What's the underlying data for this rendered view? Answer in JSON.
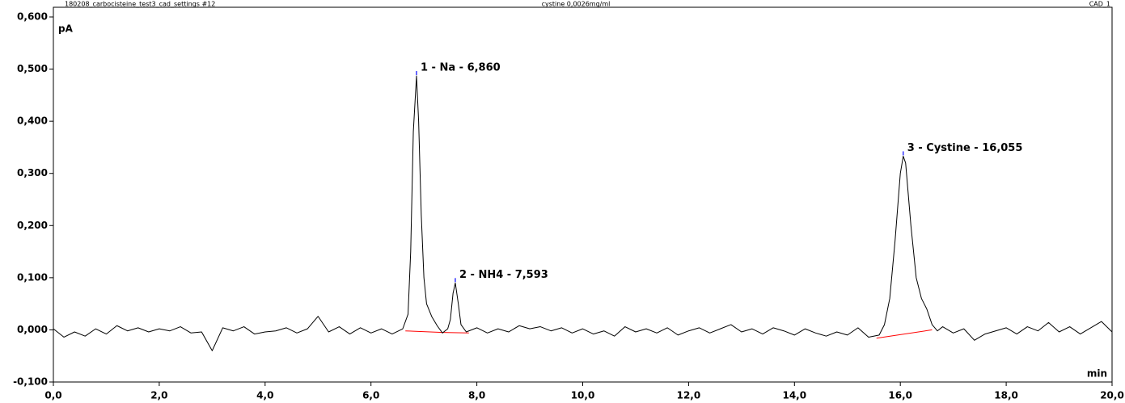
{
  "chart_data": {
    "type": "line",
    "title": "180208_carbocisteine_test3_cad_settings #12",
    "subtitle": "cystine 0,0026mg/ml",
    "channel": "CAD_1",
    "y_label": "pA",
    "x_label": "min",
    "xlim": [
      0,
      20
    ],
    "ylim": [
      -0.1,
      0.6
    ],
    "xticks": [
      {
        "value": 0,
        "label": "0,0"
      },
      {
        "value": 2,
        "label": "2,0"
      },
      {
        "value": 4,
        "label": "4,0"
      },
      {
        "value": 6,
        "label": "6,0"
      },
      {
        "value": 8,
        "label": "8,0"
      },
      {
        "value": 10,
        "label": "10,0"
      },
      {
        "value": 12,
        "label": "12,0"
      },
      {
        "value": 14,
        "label": "14,0"
      },
      {
        "value": 16,
        "label": "16,0"
      },
      {
        "value": 18,
        "label": "18,0"
      },
      {
        "value": 20,
        "label": "20,0"
      }
    ],
    "yticks": [
      {
        "value": -0.1,
        "label": "-0,100"
      },
      {
        "value": 0,
        "label": "0,000"
      },
      {
        "value": 0.1,
        "label": "0,100"
      },
      {
        "value": 0.2,
        "label": "0,200"
      },
      {
        "value": 0.3,
        "label": "0,300"
      },
      {
        "value": 0.4,
        "label": "0,400"
      },
      {
        "value": 0.5,
        "label": "0,500"
      },
      {
        "value": 0.6,
        "label": "0,600"
      }
    ],
    "series": [
      {
        "color": "#000000",
        "x": [
          0.0,
          0.2,
          0.4,
          0.6,
          0.8,
          1.0,
          1.2,
          1.4,
          1.6,
          1.8,
          2.0,
          2.2,
          2.4,
          2.6,
          2.8,
          3.0,
          3.2,
          3.4,
          3.6,
          3.8,
          4.0,
          4.2,
          4.4,
          4.6,
          4.8,
          5.0,
          5.2,
          5.4,
          5.6,
          5.8,
          6.0,
          6.2,
          6.4,
          6.6,
          6.7,
          6.75,
          6.8,
          6.86,
          6.9,
          6.95,
          7.0,
          7.05,
          7.15,
          7.25,
          7.35,
          7.45,
          7.5,
          7.55,
          7.593,
          7.65,
          7.7,
          7.8,
          8.0,
          8.2,
          8.4,
          8.6,
          8.8,
          9.0,
          9.2,
          9.4,
          9.6,
          9.8,
          10.0,
          10.2,
          10.4,
          10.6,
          10.8,
          11.0,
          11.2,
          11.4,
          11.6,
          11.8,
          12.0,
          12.2,
          12.4,
          12.6,
          12.8,
          13.0,
          13.2,
          13.4,
          13.6,
          13.8,
          14.0,
          14.2,
          14.4,
          14.6,
          14.8,
          15.0,
          15.2,
          15.4,
          15.6,
          15.7,
          15.8,
          15.9,
          16.0,
          16.055,
          16.1,
          16.2,
          16.3,
          16.4,
          16.5,
          16.6,
          16.7,
          16.8,
          17.0,
          17.2,
          17.4,
          17.6,
          17.8,
          18.0,
          18.2,
          18.4,
          18.6,
          18.8,
          19.0,
          19.2,
          19.4,
          19.6,
          19.8,
          20.0
        ],
        "values": [
          0.002,
          -0.014,
          -0.004,
          -0.012,
          0.002,
          -0.008,
          0.008,
          -0.002,
          0.004,
          -0.004,
          0.002,
          -0.002,
          0.006,
          -0.006,
          -0.004,
          -0.04,
          0.004,
          -0.002,
          0.006,
          -0.008,
          -0.004,
          -0.002,
          0.004,
          -0.006,
          0.002,
          0.026,
          -0.004,
          0.006,
          -0.008,
          0.004,
          -0.006,
          0.002,
          -0.008,
          0.002,
          0.03,
          0.15,
          0.38,
          0.487,
          0.4,
          0.22,
          0.1,
          0.05,
          0.025,
          0.008,
          -0.006,
          0.002,
          0.02,
          0.07,
          0.09,
          0.05,
          0.01,
          -0.004,
          0.004,
          -0.006,
          0.002,
          -0.004,
          0.008,
          0.002,
          0.006,
          -0.002,
          0.004,
          -0.006,
          0.002,
          -0.008,
          -0.002,
          -0.012,
          0.006,
          -0.004,
          0.002,
          -0.006,
          0.004,
          -0.01,
          -0.002,
          0.004,
          -0.006,
          0.002,
          0.01,
          -0.004,
          0.002,
          -0.008,
          0.004,
          -0.002,
          -0.01,
          0.002,
          -0.006,
          -0.012,
          -0.004,
          -0.01,
          0.004,
          -0.014,
          -0.01,
          0.01,
          0.06,
          0.17,
          0.3,
          0.333,
          0.32,
          0.2,
          0.1,
          0.06,
          0.04,
          0.01,
          -0.002,
          0.006,
          -0.006,
          0.002,
          -0.02,
          -0.008,
          -0.002,
          0.004,
          -0.008,
          0.006,
          -0.002,
          0.014,
          -0.004,
          0.006,
          -0.008,
          0.004,
          0.016,
          -0.004
        ]
      }
    ],
    "peaks": [
      {
        "label": "1 - Na - 6,860",
        "x": 6.86,
        "y": 0.487,
        "color": "#0000ff"
      },
      {
        "label": "2 - NH4 - 7,593",
        "x": 7.593,
        "y": 0.09,
        "color": "#0000ff"
      },
      {
        "label": "3 - Cystine - 16,055",
        "x": 16.055,
        "y": 0.333,
        "color": "#0000ff"
      }
    ],
    "baselines": [
      {
        "x": [
          6.65,
          7.35
        ],
        "y": [
          -0.002,
          -0.005
        ],
        "color": "#ff0000"
      },
      {
        "x": [
          7.35,
          7.85
        ],
        "y": [
          -0.005,
          -0.006
        ],
        "color": "#ff0000"
      },
      {
        "x": [
          15.55,
          16.6
        ],
        "y": [
          -0.016,
          0.0
        ],
        "color": "#ff0000"
      }
    ]
  }
}
